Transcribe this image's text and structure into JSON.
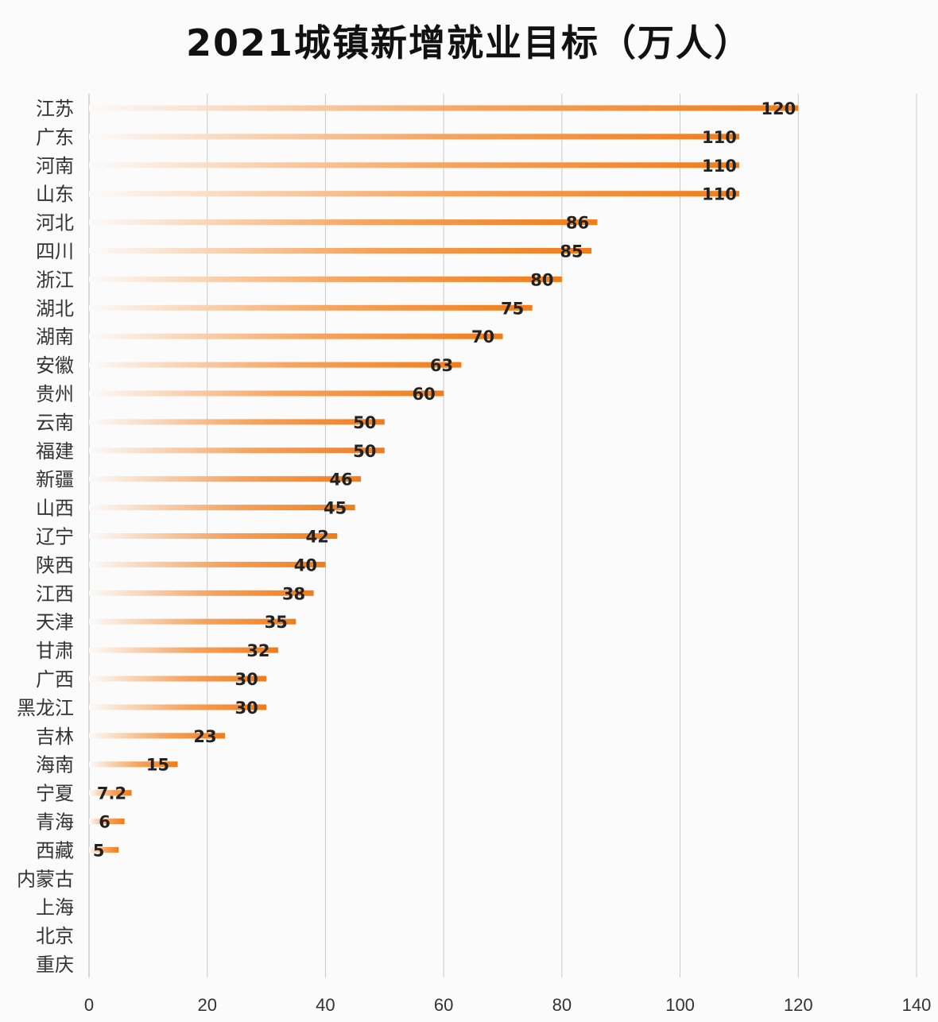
{
  "chart_data": {
    "type": "bar",
    "orientation": "horizontal",
    "title": "2021城镇新增就业目标（万人）",
    "categories": [
      "江苏",
      "广东",
      "河南",
      "山东",
      "河北",
      "四川",
      "浙江",
      "湖北",
      "湖南",
      "安徽",
      "贵州",
      "云南",
      "福建",
      "新疆",
      "山西",
      "辽宁",
      "陕西",
      "江西",
      "天津",
      "甘肃",
      "广西",
      "黑龙江",
      "吉林",
      "海南",
      "宁夏",
      "青海",
      "西藏",
      "内蒙古",
      "上海",
      "北京",
      "重庆"
    ],
    "values": [
      120,
      110,
      110,
      110,
      86,
      85,
      80,
      75,
      70,
      63,
      60,
      50,
      50,
      46,
      45,
      42,
      40,
      38,
      35,
      32,
      30,
      30,
      23,
      15,
      7.2,
      6,
      5,
      null,
      null,
      null,
      null
    ],
    "value_labels": [
      "120",
      "110",
      "110",
      "110",
      "86",
      "85",
      "80",
      "75",
      "70",
      "63",
      "60",
      "50",
      "50",
      "46",
      "45",
      "42",
      "40",
      "38",
      "35",
      "32",
      "30",
      "30",
      "23",
      "15",
      "7.2",
      "6",
      "5",
      "",
      "",
      "",
      ""
    ],
    "xlim": [
      0,
      140
    ],
    "xticks": [
      0,
      20,
      40,
      60,
      80,
      100,
      120,
      140
    ],
    "grid": true,
    "bar_color": "#f07c1a",
    "bar_fade_color": "#fbfbfb"
  }
}
